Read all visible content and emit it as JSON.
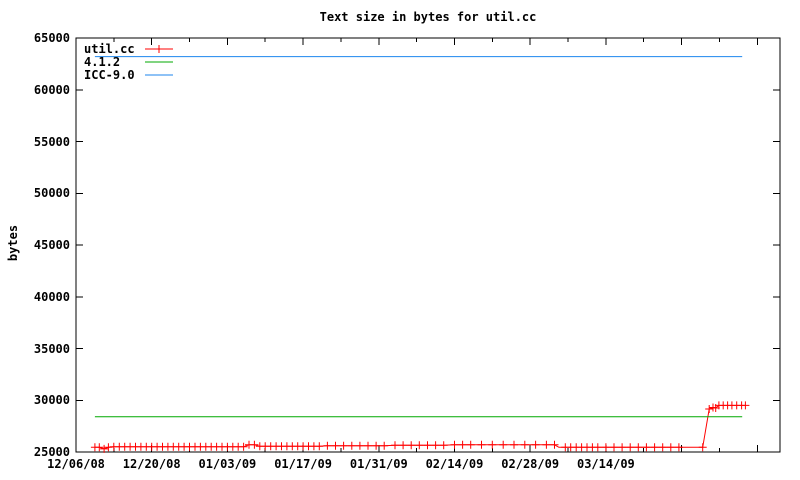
{
  "colors": {
    "background": "#ffffff",
    "axis": "#000000",
    "series_utilcc": "#ff0000",
    "series_412": "#00a800",
    "series_icc90": "#1c86ee"
  },
  "chart_data": {
    "type": "line",
    "title": "Text size in bytes for util.cc",
    "xlabel": "",
    "ylabel": "bytes",
    "grid": false,
    "legend_position": "top-left",
    "ylim": [
      25000,
      65000
    ],
    "yticks": [
      {
        "value": 25000,
        "label": "25000"
      },
      {
        "value": 30000,
        "label": "30000"
      },
      {
        "value": 35000,
        "label": "35000"
      },
      {
        "value": 40000,
        "label": "40000"
      },
      {
        "value": 45000,
        "label": "45000"
      },
      {
        "value": 50000,
        "label": "50000"
      },
      {
        "value": 55000,
        "label": "55000"
      },
      {
        "value": 60000,
        "label": "60000"
      },
      {
        "value": 65000,
        "label": "65000"
      }
    ],
    "xlim_days": [
      0,
      130.2
    ],
    "xticks": [
      {
        "day": 0,
        "label": "12/06/08"
      },
      {
        "day": 14,
        "label": "12/20/08"
      },
      {
        "day": 28,
        "label": "01/03/09"
      },
      {
        "day": 42,
        "label": "01/17/09"
      },
      {
        "day": 56,
        "label": "01/31/09"
      },
      {
        "day": 70,
        "label": "02/14/09"
      },
      {
        "day": 84,
        "label": "02/28/09"
      },
      {
        "day": 98,
        "label": "03/14/09"
      },
      {
        "day": 112,
        "label": ""
      },
      {
        "day": 126,
        "label": ""
      }
    ],
    "minor_xticks_days": [
      7,
      21,
      35,
      49,
      63,
      77,
      91,
      105,
      119
    ],
    "series": [
      {
        "name": "util.cc",
        "color": "#ff0000",
        "style": "linespoints",
        "marker": "plus",
        "points": [
          [
            3.5,
            25450
          ],
          [
            4.3,
            25450
          ],
          [
            5.2,
            25300
          ],
          [
            6,
            25450
          ],
          [
            7,
            25500
          ],
          [
            8,
            25500
          ],
          [
            9,
            25500
          ],
          [
            10,
            25500
          ],
          [
            11,
            25500
          ],
          [
            12,
            25500
          ],
          [
            13,
            25500
          ],
          [
            14,
            25500
          ],
          [
            15,
            25500
          ],
          [
            16,
            25500
          ],
          [
            17,
            25500
          ],
          [
            18,
            25500
          ],
          [
            19,
            25500
          ],
          [
            20,
            25500
          ],
          [
            21,
            25500
          ],
          [
            22,
            25500
          ],
          [
            23,
            25500
          ],
          [
            24,
            25500
          ],
          [
            25,
            25500
          ],
          [
            26,
            25500
          ],
          [
            27,
            25500
          ],
          [
            28,
            25500
          ],
          [
            29,
            25500
          ],
          [
            30,
            25500
          ],
          [
            31,
            25500
          ],
          [
            32,
            25700
          ],
          [
            33,
            25700
          ],
          [
            34,
            25550
          ],
          [
            35,
            25550
          ],
          [
            36,
            25550
          ],
          [
            37,
            25550
          ],
          [
            38,
            25550
          ],
          [
            39,
            25550
          ],
          [
            40,
            25550
          ],
          [
            41,
            25550
          ],
          [
            42,
            25550
          ],
          [
            43,
            25550
          ],
          [
            44,
            25550
          ],
          [
            45,
            25550
          ],
          [
            46.5,
            25600
          ],
          [
            48,
            25600
          ],
          [
            49.5,
            25600
          ],
          [
            51,
            25600
          ],
          [
            52.5,
            25600
          ],
          [
            54,
            25600
          ],
          [
            55.5,
            25600
          ],
          [
            57,
            25600
          ],
          [
            59,
            25650
          ],
          [
            60.5,
            25650
          ],
          [
            62,
            25650
          ],
          [
            63.5,
            25650
          ],
          [
            65,
            25650
          ],
          [
            66.5,
            25650
          ],
          [
            68,
            25650
          ],
          [
            70,
            25700
          ],
          [
            71.5,
            25700
          ],
          [
            73,
            25700
          ],
          [
            75,
            25700
          ],
          [
            77,
            25700
          ],
          [
            79,
            25700
          ],
          [
            81,
            25700
          ],
          [
            83,
            25700
          ],
          [
            85,
            25700
          ],
          [
            87,
            25700
          ],
          [
            88.5,
            25700
          ],
          [
            89.3,
            25450,
            0
          ],
          [
            90.5,
            25450
          ],
          [
            91.5,
            25450
          ],
          [
            92.5,
            25450
          ],
          [
            93.5,
            25450
          ],
          [
            94.5,
            25450
          ],
          [
            95.5,
            25450
          ],
          [
            96.5,
            25450
          ],
          [
            98,
            25450
          ],
          [
            99.5,
            25450
          ],
          [
            101,
            25450
          ],
          [
            102.5,
            25450
          ],
          [
            104,
            25450
          ],
          [
            105.5,
            25450
          ],
          [
            107,
            25450
          ],
          [
            108.5,
            25450
          ],
          [
            110,
            25450
          ],
          [
            111.5,
            25450
          ],
          [
            115.9,
            25450
          ],
          [
            117.1,
            29150
          ],
          [
            117.8,
            29300
          ],
          [
            118.3,
            29250
          ],
          [
            118.9,
            29500
          ],
          [
            119.7,
            29500
          ],
          [
            120.5,
            29500
          ],
          [
            121.3,
            29500
          ],
          [
            122.2,
            29500
          ],
          [
            123.1,
            29500
          ],
          [
            123.8,
            29500
          ]
        ]
      },
      {
        "name": "4.1.2",
        "color": "#00a800",
        "style": "line",
        "points": [
          [
            3.5,
            28400
          ],
          [
            123.2,
            28400
          ]
        ]
      },
      {
        "name": "ICC-9.0",
        "color": "#1c86ee",
        "style": "line",
        "points": [
          [
            3.5,
            63200
          ],
          [
            123.2,
            63200
          ]
        ]
      }
    ]
  }
}
